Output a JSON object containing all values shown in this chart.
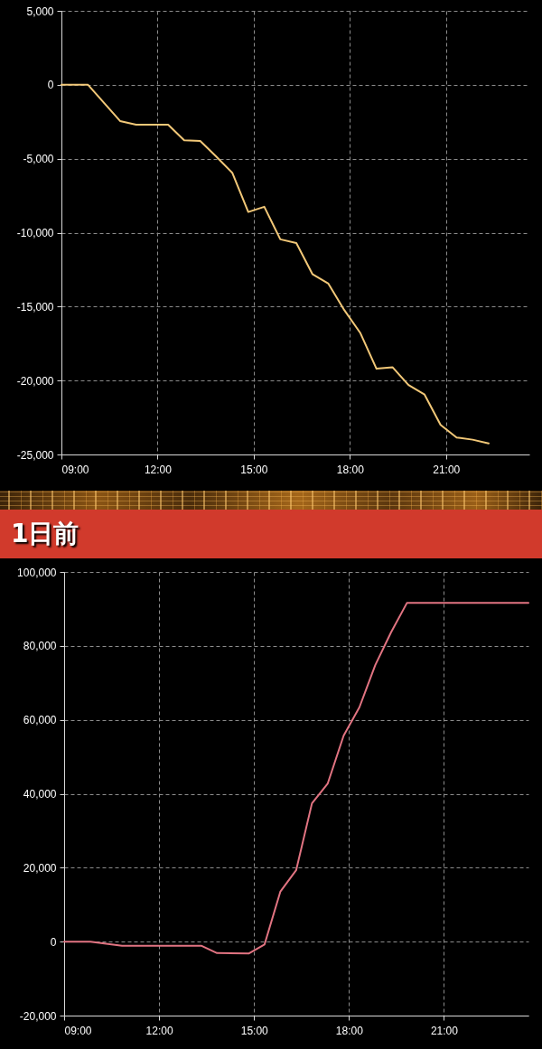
{
  "chart_data": [
    {
      "type": "line",
      "x": [
        9,
        9.83,
        10.83,
        11.33,
        12.33,
        12.83,
        13.33,
        13.83,
        14.33,
        14.83,
        15.33,
        15.83,
        16.33,
        16.83,
        17.33,
        17.83,
        18.33,
        18.83,
        19.33,
        19.83,
        20.33,
        20.83,
        21.33,
        21.83,
        22.33
      ],
      "series": [
        {
          "color": "#f2c878",
          "values": [
            0,
            0,
            -2450,
            -2700,
            -2700,
            -3750,
            -3800,
            -4850,
            -5950,
            -8600,
            -8250,
            -10450,
            -10700,
            -12800,
            -13450,
            -15250,
            -16800,
            -19200,
            -19100,
            -20300,
            -20950,
            -23000,
            -23850,
            -24000,
            -24250
          ]
        }
      ],
      "xlim": [
        9,
        23.6
      ],
      "xticks": [
        {
          "value": 9,
          "label": "09:00"
        },
        {
          "value": 12,
          "label": "12:00"
        },
        {
          "value": 15,
          "label": "15:00"
        },
        {
          "value": 18,
          "label": "18:00"
        },
        {
          "value": 21,
          "label": "21:00"
        }
      ],
      "ylim": [
        -25000,
        5000
      ],
      "yticks": [
        {
          "value": -25000,
          "label": "-25,000"
        },
        {
          "value": -20000,
          "label": "-20,000"
        },
        {
          "value": -15000,
          "label": "-15,000"
        },
        {
          "value": -10000,
          "label": "-10,000"
        },
        {
          "value": -5000,
          "label": "-5,000"
        },
        0,
        {
          "value": 5000,
          "label": "5,000"
        }
      ],
      "grid": true
    },
    {
      "type": "line",
      "title": "1日前",
      "x": [
        9,
        9.83,
        10.83,
        13.33,
        13.83,
        14.83,
        15.33,
        15.83,
        16.33,
        16.83,
        17.33,
        17.83,
        18.33,
        18.83,
        19.33,
        19.83,
        23.67
      ],
      "series": [
        {
          "color": "#e27482",
          "values": [
            0,
            0,
            -1100,
            -1100,
            -3100,
            -3200,
            -800,
            13500,
            19300,
            37400,
            42800,
            55700,
            63400,
            74800,
            83700,
            91600,
            91600
          ]
        }
      ],
      "xlim": [
        9,
        23.67
      ],
      "xticks": [
        {
          "value": 9,
          "label": "09:00"
        },
        {
          "value": 12,
          "label": "12:00"
        },
        {
          "value": 15,
          "label": "15:00"
        },
        {
          "value": 18,
          "label": "18:00"
        },
        {
          "value": 21,
          "label": "21:00"
        }
      ],
      "ylim": [
        -20000,
        100000
      ],
      "yticks": [
        {
          "value": -20000,
          "label": "-20,000"
        },
        0,
        {
          "value": 20000,
          "label": "20,000"
        },
        {
          "value": 40000,
          "label": "40,000"
        },
        {
          "value": 60000,
          "label": "60,000"
        },
        {
          "value": 80000,
          "label": "80,000"
        },
        {
          "value": 100000,
          "label": "100,000"
        }
      ],
      "grid": true
    }
  ]
}
